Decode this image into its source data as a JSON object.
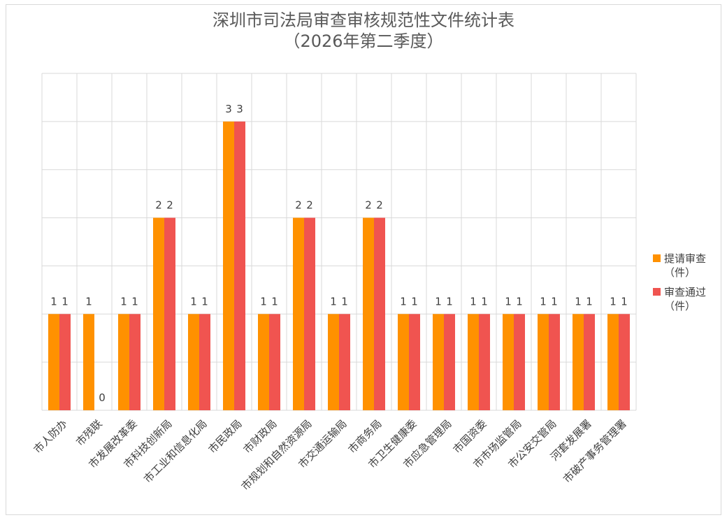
{
  "chart_data": {
    "type": "bar",
    "title": "深圳市司法局审查审核规范性文件统计表",
    "subtitle": "（2026年第二季度）",
    "categories": [
      "市人防办",
      "市残联",
      "市发展改革委",
      "市科技创新局",
      "市工业和信息化局",
      "市民政局",
      "市财政局",
      "市规划和自然资源局",
      "市交通运输局",
      "市商务局",
      "市卫生健康委",
      "市应急管理局",
      "市国资委",
      "市市场监管局",
      "市公安交管局",
      "河套发展署",
      "市破产事务管理署"
    ],
    "series": [
      {
        "name": "提请审查（件）",
        "color": "#FF9100",
        "values": [
          1,
          1,
          1,
          2,
          1,
          3,
          1,
          2,
          1,
          2,
          1,
          1,
          1,
          1,
          1,
          1,
          1
        ]
      },
      {
        "name": "审查通过（件）",
        "color": "#F05450",
        "values": [
          1,
          0,
          1,
          2,
          1,
          3,
          1,
          2,
          1,
          2,
          1,
          1,
          1,
          1,
          1,
          1,
          1
        ]
      }
    ],
    "ylim": [
      0,
      3.5
    ],
    "grid": true,
    "legend_position": "right"
  }
}
